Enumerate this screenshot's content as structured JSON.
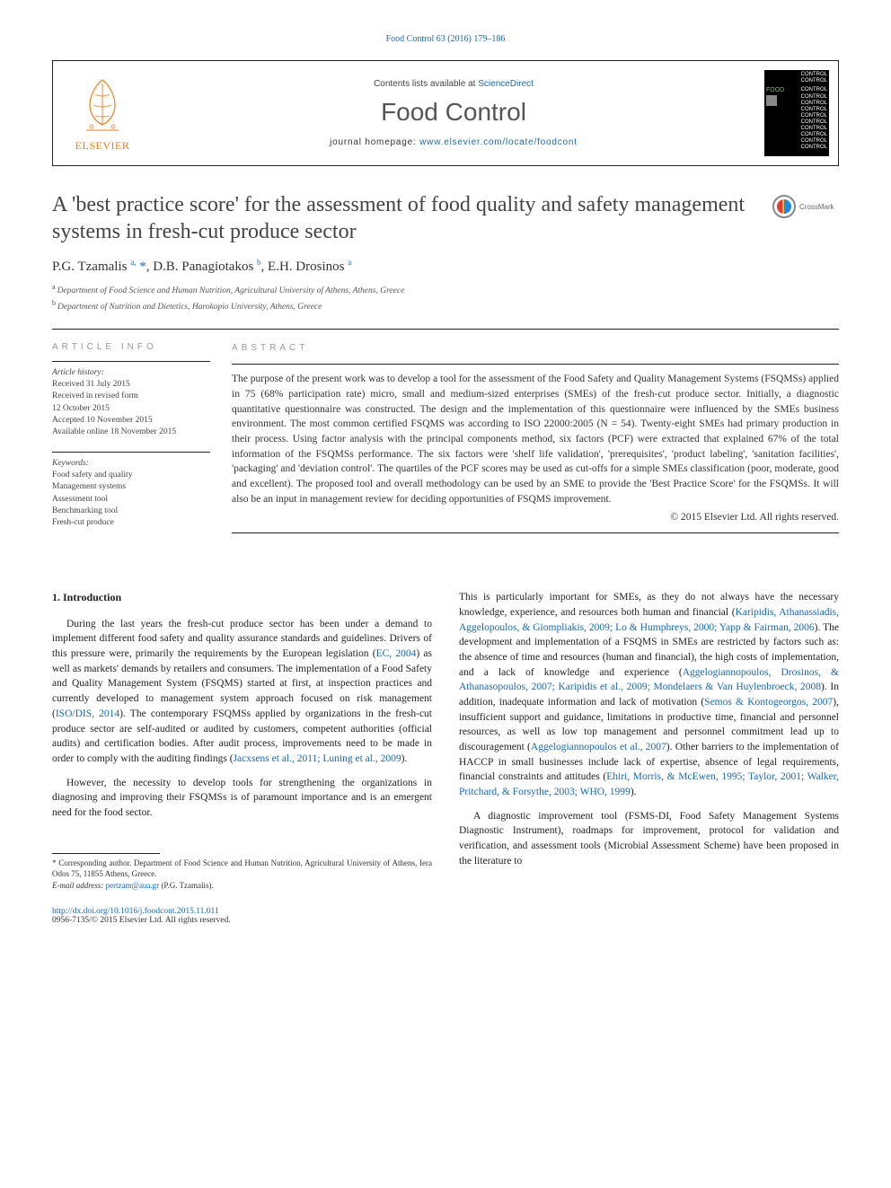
{
  "citation_line": "Food Control 63 (2016) 179–186",
  "header": {
    "contents_prefix": "Contents lists available at ",
    "contents_link": "ScienceDirect",
    "journal": "Food Control",
    "homepage_prefix": "journal homepage: ",
    "homepage_url": "www.elsevier.com/locate/foodcont",
    "publisher_name": "ELSEVIER"
  },
  "cover": {
    "lines": [
      "CONTROL",
      "CONTROL",
      "CONTROL",
      "CONTROL",
      "CONTROL",
      "CONTROL",
      "CONTROL",
      "CONTROL",
      "CONTROL",
      "CONTROL",
      "CONTROL",
      "CONTROL"
    ],
    "food_label": "FOOD"
  },
  "crossmark_label": "CrossMark",
  "title": "A 'best practice score' for the assessment of food quality and safety management systems in fresh-cut produce sector",
  "authors_html": "P.G. Tzamalis <sup>a,</sup> <span class='star'>*</span>, D.B. Panagiotakos <sup>b</sup>, E.H. Drosinos <sup>a</sup>",
  "affiliations": [
    {
      "sup": "a",
      "text": "Department of Food Science and Human Nutrition, Agricultural University of Athens, Athens, Greece"
    },
    {
      "sup": "b",
      "text": "Department of Nutrition and Dietetics, Harokopio University, Athens, Greece"
    }
  ],
  "article_info": {
    "heading": "ARTICLE INFO",
    "history_label": "Article history:",
    "history": [
      "Received 31 July 2015",
      "Received in revised form",
      "12 October 2015",
      "Accepted 10 November 2015",
      "Available online 18 November 2015"
    ],
    "keywords_label": "Keywords:",
    "keywords": [
      "Food safety and quality",
      "Management systems",
      "Assessment tool",
      "Benchmarking tool",
      "Fresh-cut produce"
    ]
  },
  "abstract": {
    "heading": "ABSTRACT",
    "text": "The purpose of the present work was to develop a tool for the assessment of the Food Safety and Quality Management Systems (FSQMSs) applied in 75 (68% participation rate) micro, small and medium-sized enterprises (SMEs) of the fresh-cut produce sector. Initially, a diagnostic quantitative questionnaire was constructed. The design and the implementation of this questionnaire were influenced by the SMEs business environment. The most common certified FSQMS was according to ISO 22000:2005 (N = 54). Twenty-eight SMEs had primary production in their process. Using factor analysis with the principal components method, six factors (PCF) were extracted that explained 67% of the total information of the FSQMSs performance. The six factors were 'shelf life validation', 'prerequisites', 'product labeling', 'sanitation facilities', 'packaging' and 'deviation control'. The quartiles of the PCF scores may be used as cut-offs for a simple SMEs classification (poor, moderate, good and excellent). The proposed tool and overall methodology can be used by an SME to provide the 'Best Practice Score' for the FSQMSs. It will also be an input in management review for deciding opportunities of FSQMS improvement.",
    "copyright": "© 2015 Elsevier Ltd. All rights reserved."
  },
  "body": {
    "section_heading": "1. Introduction",
    "left_paras": [
      {
        "text": "During the last years the fresh-cut produce sector has been under a demand to implement different food safety and quality assurance standards and guidelines. Drivers of this pressure were, primarily the requirements by the European legislation (",
        "cite1": "EC, 2004",
        "mid": ") as well as markets' demands by retailers and consumers. The implementation of a Food Safety and Quality Management System (FSQMS) started at first, at inspection practices and currently developed to management system approach focused on risk management (",
        "cite2": "ISO/DIS, 2014",
        "mid2": "). The contemporary FSQMSs applied by organizations in the fresh-cut produce sector are self-audited or audited by customers, competent authorities (official audits) and certification bodies. After audit process, improvements need to be made in order to comply with the auditing findings (",
        "cite3": "Jacxsens et al., 2011; Luning et al., 2009",
        "end": ")."
      },
      {
        "text": "However, the necessity to develop tools for strengthening the organizations in diagnosing and improving their FSQMSs is of paramount importance and is an emergent need for the food sector."
      }
    ],
    "right_paras": [
      {
        "pre": "This is particularly important for SMEs, as they do not always have the necessary knowledge, experience, and resources both human and financial (",
        "cite1": "Karipidis, Athanassiadis, Aggelopoulos, & Giompliakis, 2009; Lo & Humphreys, 2000; Yapp & Fairman, 2006",
        "mid1": "). The development and implementation of a FSQMS in SMEs are restricted by factors such as: the absence of time and resources (human and financial), the high costs of implementation, and a lack of knowledge and experience (",
        "cite2": "Aggelogiannopoulos, Drosinos, & Athanasopoulos, 2007; Karipidis et al., 2009; Mondelaers & Van Huylenbroeck, 2008",
        "mid2": "). In addition, inadequate information and lack of motivation (",
        "cite3": "Semos & Kontogeorgos, 2007",
        "mid3": "), insufficient support and guidance, limitations in productive time, financial and personnel resources, as well as low top management and personnel commitment lead up to discouragement (",
        "cite4": "Aggelogiannopoulos et al., 2007",
        "mid4": "). Other barriers to the implementation of HACCP in small businesses include lack of expertise, absence of legal requirements, financial constraints and attitudes (",
        "cite5": "Ehiri, Morris, & McEwen, 1995; Taylor, 2001; Walker, Pritchard, & Forsythe, 2003; WHO, 1999",
        "end": ")."
      },
      {
        "text": "A diagnostic improvement tool (FSMS-DI, Food Safety Management Systems Diagnostic Instrument), roadmaps for improvement, protocol for validation and verification, and assessment tools (Microbial Assessment Scheme) have been proposed in the literature to"
      }
    ]
  },
  "footnote": {
    "corr_label": "* Corresponding author. Department of Food Science and Human Nutrition, Agricultural University of Athens, Iera Odos 75, 11855 Athens, Greece.",
    "email_label": "E-mail address: ",
    "email": "pertzam@aua.gr",
    "email_person": " (P.G. Tzamalis)."
  },
  "footer": {
    "doi": "http://dx.doi.org/10.1016/j.foodcont.2015.11.011",
    "issn_cpy": "0956-7135/© 2015 Elsevier Ltd. All rights reserved."
  },
  "colors": {
    "link": "#1968b3",
    "orange": "#ef7f1a",
    "text": "#333333",
    "rule": "#222222"
  },
  "typography": {
    "body_font": "Times New Roman",
    "title_fontsize_pt": 18,
    "journal_fontsize_pt": 21,
    "body_fontsize_pt": 9,
    "abstract_fontsize_pt": 9
  }
}
